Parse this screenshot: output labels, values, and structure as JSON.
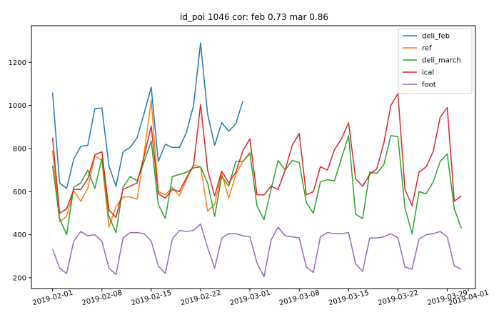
{
  "chart_data": {
    "type": "line",
    "title": "id_poi 1046 cor: feb 0.73 mar 0.86",
    "xlabel": "",
    "ylabel": "",
    "x_start": "2019-02-01",
    "xlim": [
      "2019-01-29",
      "2019-04-02"
    ],
    "ylim": [
      150,
      1370
    ],
    "grid": false,
    "legend_position": "top-right",
    "x_ticks": [
      "2019-02-01",
      "2019-02-08",
      "2019-02-15",
      "2019-02-22",
      "2019-03-01",
      "2019-03-08",
      "2019-03-15",
      "2019-03-22",
      "2019-03-29",
      "2019-04-01"
    ],
    "y_ticks": [
      200,
      400,
      600,
      800,
      1000,
      1200
    ],
    "series": [
      {
        "name": "deli_feb",
        "color": "#1f77b4",
        "values": [
          1060,
          640,
          615,
          750,
          810,
          815,
          985,
          988,
          720,
          625,
          785,
          805,
          850,
          965,
          1085,
          740,
          820,
          805,
          805,
          875,
          1000,
          1290,
          960,
          815,
          920,
          880,
          915,
          1020
        ]
      },
      {
        "name": "ref",
        "color": "#ff7f0e",
        "values": [
          790,
          460,
          485,
          605,
          555,
          615,
          765,
          745,
          435,
          530,
          575,
          575,
          565,
          780,
          1025,
          600,
          585,
          620,
          580,
          655,
          725,
          715,
          510,
          540,
          685,
          570,
          680,
          740,
          775
        ]
      },
      {
        "name": "deli_march",
        "color": "#2ca02c",
        "values": [
          720,
          475,
          400,
          620,
          640,
          700,
          615,
          755,
          485,
          410,
          620,
          670,
          650,
          740,
          835,
          540,
          475,
          670,
          680,
          690,
          710,
          715,
          640,
          485,
          670,
          625,
          740,
          740,
          780,
          535,
          470,
          610,
          745,
          700,
          745,
          735,
          550,
          500,
          645,
          655,
          650,
          755,
          860,
          495,
          475,
          690,
          685,
          725,
          860,
          855,
          525,
          405,
          600,
          590,
          645,
          740,
          775,
          520,
          430
        ]
      },
      {
        "name": "ical",
        "color": "#d62728",
        "values": [
          850,
          500,
          520,
          610,
          610,
          660,
          770,
          785,
          515,
          480,
          610,
          625,
          640,
          765,
          905,
          590,
          570,
          610,
          600,
          665,
          720,
          1005,
          700,
          580,
          695,
          640,
          690,
          790,
          845,
          585,
          585,
          625,
          610,
          700,
          815,
          870,
          585,
          600,
          715,
          700,
          795,
          845,
          920,
          660,
          625,
          680,
          705,
          825,
          1000,
          1055,
          610,
          535,
          690,
          715,
          785,
          945,
          990,
          555,
          580
        ]
      },
      {
        "name": "foot",
        "color": "#9467bd",
        "values": [
          335,
          245,
          220,
          370,
          415,
          395,
          400,
          370,
          245,
          215,
          385,
          410,
          410,
          405,
          370,
          255,
          220,
          380,
          420,
          415,
          420,
          450,
          340,
          245,
          385,
          405,
          405,
          395,
          390,
          270,
          205,
          375,
          435,
          395,
          390,
          385,
          250,
          225,
          390,
          410,
          405,
          405,
          410,
          265,
          230,
          385,
          385,
          390,
          405,
          385,
          250,
          240,
          380,
          400,
          405,
          415,
          390,
          255,
          240
        ]
      }
    ]
  }
}
